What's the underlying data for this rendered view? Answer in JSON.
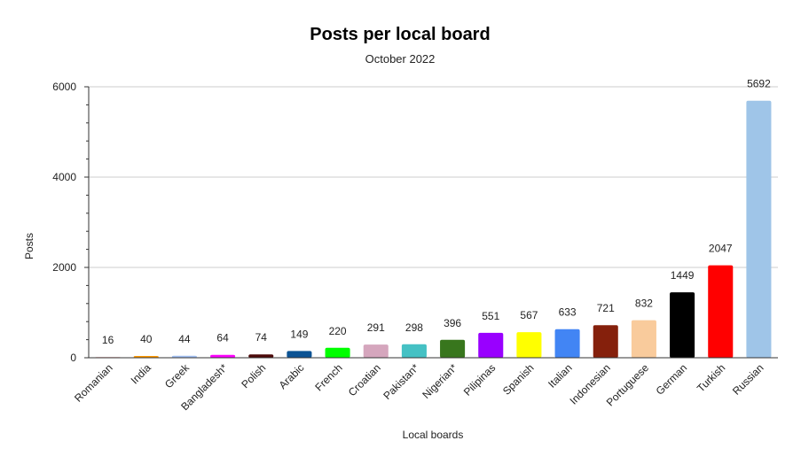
{
  "chart_data": {
    "type": "bar",
    "title": "Posts per local board",
    "subtitle": "October 2022",
    "xlabel": "Local boards",
    "ylabel": "Posts",
    "ylim": [
      0,
      6000
    ],
    "yticks": [
      0,
      2000,
      4000,
      6000
    ],
    "grid": true,
    "legend": "none",
    "categories": [
      "Romanian",
      "India",
      "Greek",
      "Bangladesh*",
      "Polish",
      "Arabic",
      "French",
      "Croatian",
      "Pakistan*",
      "Nigerian*",
      "Pilipinas",
      "Spanish",
      "Italian",
      "Indonesian",
      "Portuguese",
      "German",
      "Turkish",
      "Russian"
    ],
    "values": [
      16,
      40,
      44,
      64,
      74,
      149,
      220,
      291,
      298,
      396,
      551,
      567,
      633,
      721,
      832,
      1449,
      2047,
      5692
    ],
    "colors": [
      "#f4cccc",
      "#ff9900",
      "#a4c2f4",
      "#ff00ff",
      "#4d0a0a",
      "#0b5394",
      "#00ff00",
      "#d5a6bd",
      "#45c1c4",
      "#38761d",
      "#9900ff",
      "#ffff00",
      "#4285f4",
      "#85200c",
      "#f9cb9c",
      "#000000",
      "#ff0000",
      "#9fc5e8"
    ]
  }
}
